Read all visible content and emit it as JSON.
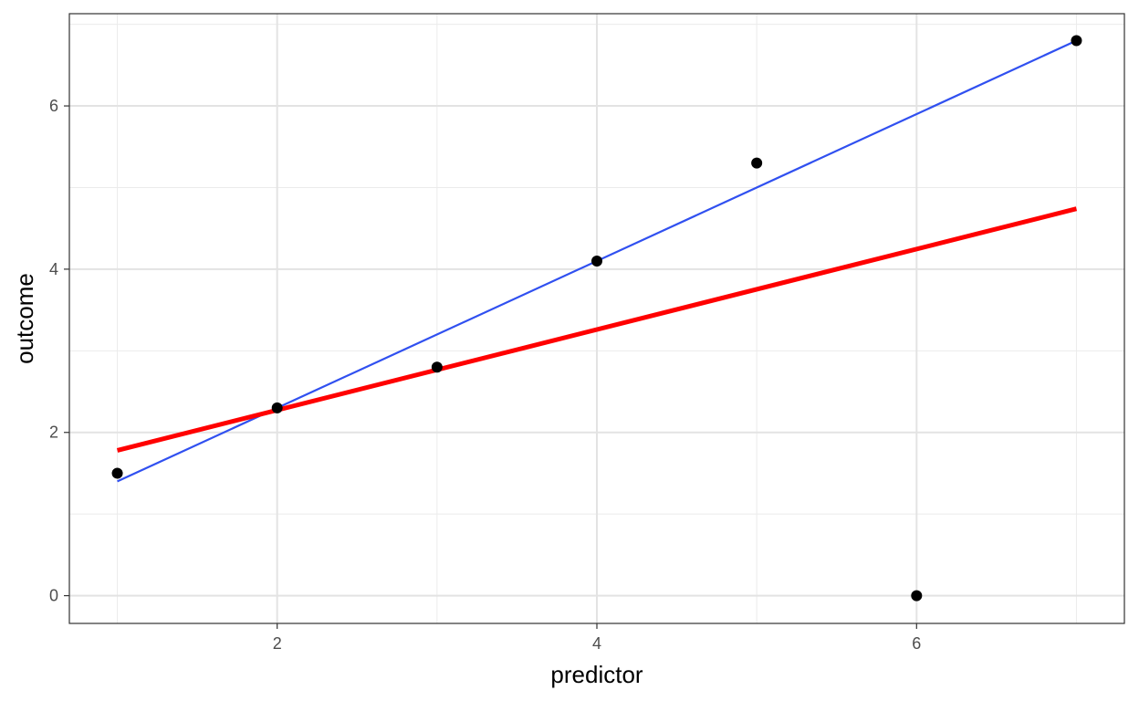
{
  "chart_data": {
    "type": "scatter",
    "xlabel": "predictor",
    "ylabel": "outcome",
    "xlim": [
      0.7,
      7.3
    ],
    "ylim": [
      -0.34,
      7.13
    ],
    "x_ticks": [
      2,
      4,
      6
    ],
    "y_ticks": [
      0,
      2,
      4,
      6
    ],
    "x_minor": [
      1,
      3,
      5,
      7
    ],
    "y_minor": [
      1,
      3,
      5,
      7
    ],
    "grid": true,
    "points": {
      "x": [
        1,
        2,
        3,
        4,
        5,
        6,
        7
      ],
      "y": [
        1.5,
        2.3,
        2.8,
        4.1,
        5.3,
        0.0,
        6.8
      ],
      "color": "#000000"
    },
    "lines": [
      {
        "x": [
          1,
          7
        ],
        "y": [
          1.4,
          6.8
        ],
        "color": "#3050f0",
        "width": 2.2
      },
      {
        "x": [
          1,
          7
        ],
        "y": [
          1.78,
          4.74
        ],
        "color": "#ff0000",
        "width": 5
      }
    ]
  }
}
